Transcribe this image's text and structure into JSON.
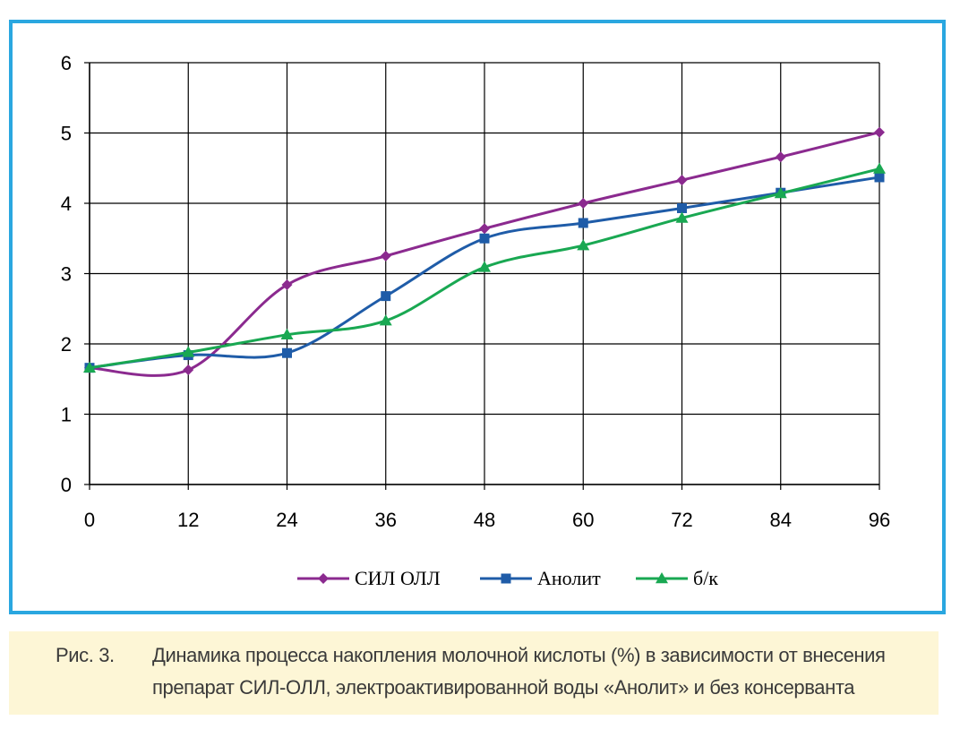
{
  "chart_data": {
    "type": "line",
    "x": [
      0,
      12,
      24,
      36,
      48,
      60,
      72,
      84,
      96
    ],
    "xticks": [
      "0",
      "12",
      "24",
      "36",
      "48",
      "60",
      "72",
      "84",
      "96"
    ],
    "yticks": [
      "0",
      "1",
      "2",
      "3",
      "4",
      "5",
      "6"
    ],
    "xlim": [
      0,
      96
    ],
    "ylim": [
      0,
      6
    ],
    "grid": true,
    "smooth": true,
    "legend_position": "bottom",
    "series": [
      {
        "name": "СИЛ  ОЛЛ",
        "color": "#8b2a8f",
        "marker": "diamond",
        "values": [
          1.66,
          1.63,
          2.84,
          3.25,
          3.64,
          4.0,
          4.33,
          4.66,
          5.01
        ]
      },
      {
        "name": "Анолит",
        "color": "#1f5ca8",
        "marker": "square",
        "values": [
          1.66,
          1.84,
          1.87,
          2.68,
          3.5,
          3.72,
          3.93,
          4.15,
          4.37
        ]
      },
      {
        "name": "б/к",
        "color": "#19a852",
        "marker": "triangle",
        "values": [
          1.66,
          1.88,
          2.13,
          2.33,
          3.09,
          3.4,
          3.79,
          4.14,
          4.49
        ]
      }
    ]
  },
  "caption": {
    "label": "Рис. 3.",
    "line1": "Динамика процесса накопления молочной кислоты (%) в зависимости от внесения",
    "line2": "препарат СИЛ-ОЛЛ, электроактивированной воды «Анолит» и без консерванта"
  }
}
